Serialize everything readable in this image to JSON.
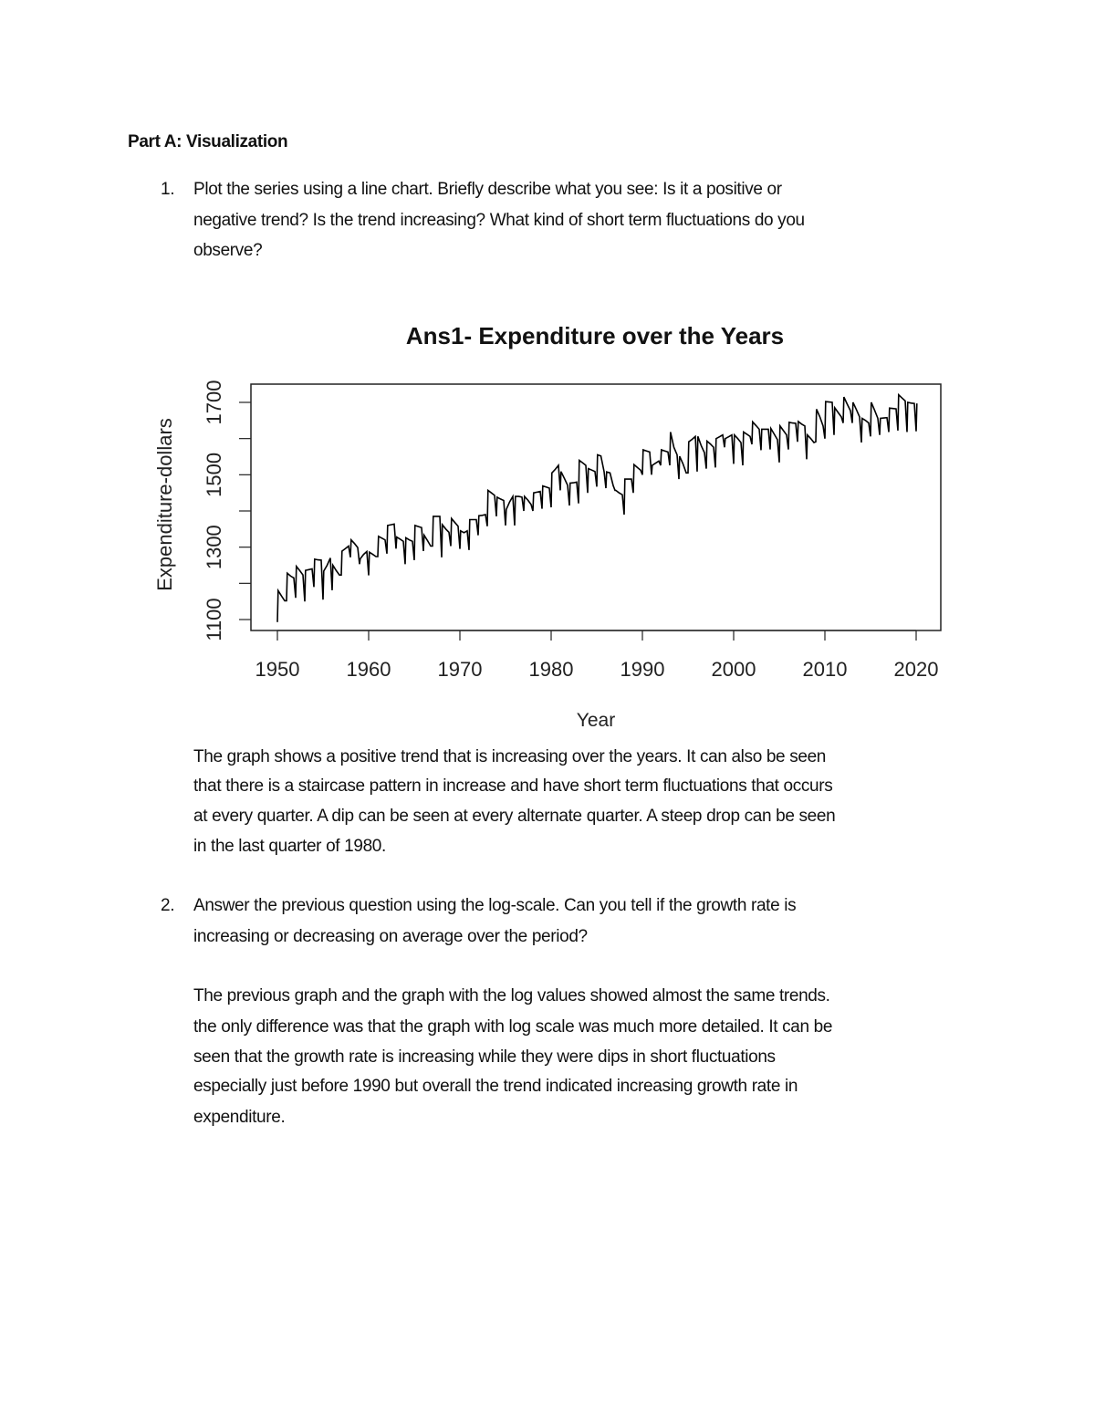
{
  "heading": "Part A: Visualization",
  "questions": [
    {
      "number": "1.",
      "lines": [
        "Plot the series using a line chart. Briefly describe what you see: Is it a positive or",
        "negative trend? Is the trend increasing? What kind of short term fluctuations do you",
        "observe?"
      ],
      "answer": [
        "The graph shows a positive trend that is increasing over the years. It can also be seen",
        "that there is a staircase pattern in increase and have short term fluctuations that occurs",
        "at every quarter. A dip can be seen at every alternate quarter. A steep drop can be seen",
        "in the last quarter of 1980."
      ]
    },
    {
      "number": "2.",
      "lines": [
        "Answer the previous question using the log-scale. Can you tell if the growth rate is",
        "increasing or decreasing on average over the period?"
      ],
      "answer": [
        "The previous graph and the graph with the log values showed almost the same trends.",
        "the only difference was that the graph with log scale was much more detailed. It can be",
        "seen that the growth rate is increasing while they were dips in short fluctuations",
        "especially just before 1990 but overall the trend indicated increasing growth rate in",
        "expenditure."
      ]
    }
  ],
  "chart_data": {
    "type": "line",
    "title": "Ans1- Expenditure over the Years",
    "xlabel": "Year",
    "ylabel": "Expenditure-dollars",
    "xlim": [
      1947,
      2023
    ],
    "ylim": [
      1070,
      1750
    ],
    "xticks": [
      "1950",
      "1960",
      "1970",
      "1980",
      "1990",
      "2000",
      "2010",
      "2020"
    ],
    "yticks": [
      "1100",
      "1300",
      "1500",
      "1700"
    ],
    "yminor_ticks": [
      1100,
      1200,
      1300,
      1400,
      1500,
      1600,
      1700
    ],
    "grid": false,
    "line_color": "#000000",
    "frequency": "quarterly",
    "start_year": 1950,
    "values_by_year": [
      [
        1093,
        1180,
        1165,
        1152
      ],
      [
        1152,
        1228,
        1220,
        1215
      ],
      [
        1160,
        1247,
        1235,
        1223
      ],
      [
        1150,
        1236,
        1238,
        1240
      ],
      [
        1190,
        1267,
        1265,
        1264
      ],
      [
        1155,
        1234,
        1250,
        1270
      ],
      [
        1181,
        1250,
        1235,
        1223
      ],
      [
        1223,
        1289,
        1296,
        1303
      ],
      [
        1272,
        1320,
        1310,
        1299
      ],
      [
        1253,
        1268,
        1280,
        1288
      ],
      [
        1222,
        1286,
        1280,
        1274
      ],
      [
        1274,
        1330,
        1325,
        1320
      ],
      [
        1282,
        1360,
        1362,
        1364
      ],
      [
        1296,
        1328,
        1322,
        1316
      ],
      [
        1253,
        1326,
        1320,
        1316
      ],
      [
        1264,
        1360,
        1357,
        1354
      ],
      [
        1289,
        1333,
        1318,
        1303
      ],
      [
        1303,
        1385,
        1385,
        1385
      ],
      [
        1272,
        1362,
        1350,
        1341
      ],
      [
        1303,
        1379,
        1368,
        1358
      ],
      [
        1295,
        1345,
        1340,
        1345
      ],
      [
        1292,
        1376,
        1376,
        1376
      ],
      [
        1333,
        1387,
        1388,
        1390
      ],
      [
        1358,
        1457,
        1450,
        1443
      ],
      [
        1385,
        1438,
        1433,
        1429
      ],
      [
        1360,
        1404,
        1425,
        1440
      ],
      [
        1360,
        1440,
        1440,
        1438
      ],
      [
        1400,
        1440,
        1430,
        1418
      ],
      [
        1400,
        1450,
        1452,
        1454
      ],
      [
        1406,
        1469,
        1466,
        1463
      ],
      [
        1410,
        1505,
        1515,
        1526
      ],
      [
        1457,
        1509,
        1490,
        1471
      ],
      [
        1415,
        1477,
        1478,
        1480
      ],
      [
        1421,
        1540,
        1533,
        1526
      ],
      [
        1450,
        1517,
        1513,
        1509
      ],
      [
        1467,
        1555,
        1552,
        1509
      ],
      [
        1463,
        1508,
        1505,
        1470
      ],
      [
        1457,
        1457,
        1450,
        1445
      ],
      [
        1390,
        1488,
        1488,
        1488
      ],
      [
        1450,
        1528,
        1520,
        1513
      ],
      [
        1500,
        1569,
        1566,
        1563
      ],
      [
        1500,
        1526,
        1532,
        1538
      ],
      [
        1526,
        1569,
        1566,
        1563
      ],
      [
        1526,
        1618,
        1576,
        1555
      ],
      [
        1488,
        1551,
        1530,
        1505
      ],
      [
        1505,
        1591,
        1598,
        1606
      ],
      [
        1509,
        1606,
        1580,
        1561
      ],
      [
        1517,
        1593,
        1585,
        1576
      ],
      [
        1520,
        1600,
        1605,
        1610
      ],
      [
        1576,
        1600,
        1605,
        1610
      ],
      [
        1530,
        1610,
        1600,
        1589
      ],
      [
        1526,
        1618,
        1612,
        1606
      ],
      [
        1584,
        1646,
        1636,
        1626
      ],
      [
        1568,
        1626,
        1626,
        1626
      ],
      [
        1570,
        1628,
        1612,
        1597
      ],
      [
        1534,
        1635,
        1622,
        1610
      ],
      [
        1570,
        1645,
        1643,
        1642
      ],
      [
        1591,
        1647,
        1640,
        1635
      ],
      [
        1543,
        1610,
        1600,
        1589
      ],
      [
        1591,
        1681,
        1660,
        1635
      ],
      [
        1600,
        1702,
        1701,
        1700
      ],
      [
        1610,
        1685,
        1672,
        1660
      ],
      [
        1643,
        1715,
        1695,
        1677
      ],
      [
        1643,
        1700,
        1680,
        1660
      ],
      [
        1589,
        1656,
        1650,
        1643
      ],
      [
        1606,
        1700,
        1678,
        1656
      ],
      [
        1610,
        1656,
        1657,
        1658
      ],
      [
        1618,
        1684,
        1683,
        1682
      ],
      [
        1622,
        1721,
        1712,
        1704
      ],
      [
        1618,
        1700,
        1698,
        1697
      ],
      [
        1620,
        1697
      ]
    ]
  }
}
